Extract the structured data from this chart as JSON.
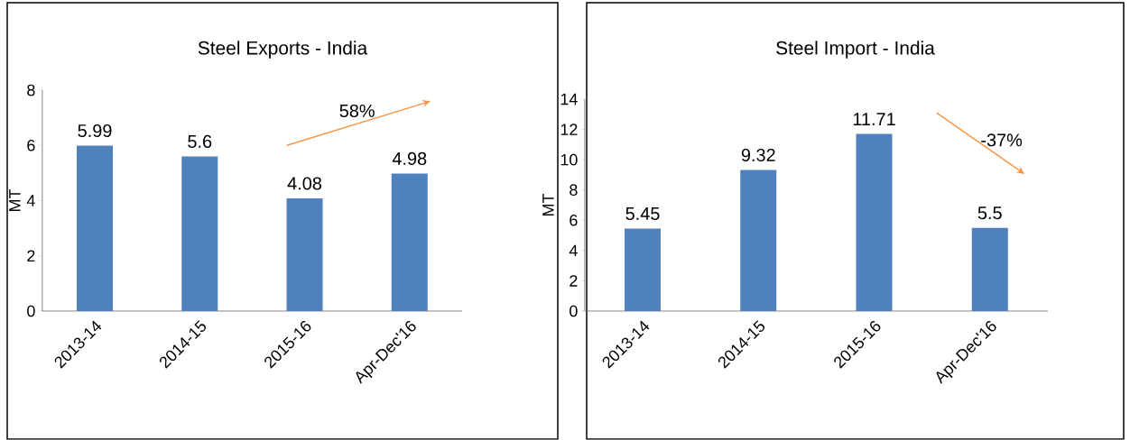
{
  "chart_data": [
    {
      "type": "bar",
      "title": "Steel Exports - India",
      "ylabel": "MT",
      "categories": [
        "2013-14",
        "2014-15",
        "2015-16",
        "Apr-Dec'16"
      ],
      "values": [
        5.99,
        5.6,
        4.08,
        4.98
      ],
      "color": "#4f81bd",
      "ylim": [
        0,
        8
      ],
      "yticks": [
        0,
        2,
        4,
        6,
        8
      ],
      "data_labels": true,
      "annotations": [
        "58%"
      ]
    },
    {
      "type": "bar",
      "title": "Steel Import - India",
      "ylabel": "MT",
      "categories": [
        "2013-14",
        "2014-15",
        "2015-16",
        "Apr-Dec'16"
      ],
      "values": [
        5.45,
        9.32,
        11.71,
        5.5
      ],
      "color": "#4f81bd",
      "ylim": [
        0,
        14
      ],
      "yticks": [
        0,
        2,
        4,
        6,
        8,
        10,
        12,
        14
      ],
      "data_labels": true,
      "annotations": [
        "-37%"
      ]
    }
  ]
}
